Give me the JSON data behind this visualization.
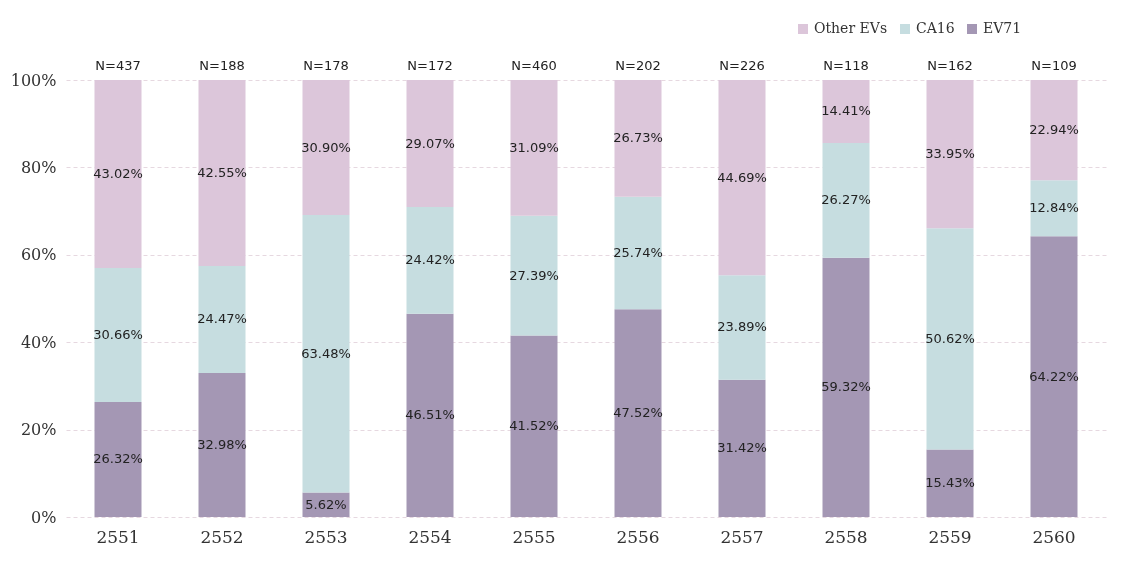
{
  "chart_data": {
    "type": "bar",
    "stacked": true,
    "categories": [
      "2551",
      "2552",
      "2553",
      "2554",
      "2555",
      "2556",
      "2557",
      "2558",
      "2559",
      "2560"
    ],
    "series": [
      {
        "name": "EV71",
        "color": "#a497b4",
        "values": [
          26.32,
          32.98,
          5.62,
          46.51,
          41.52,
          47.52,
          31.42,
          59.32,
          15.43,
          64.22
        ],
        "value_labels": [
          "26.32%",
          "32.98%",
          "5.62%",
          "46.51%",
          "41.52%",
          "47.52%",
          "31.42%",
          "59.32%",
          "15.43%",
          "64.22%"
        ]
      },
      {
        "name": "CA16",
        "color": "#c6dde0",
        "values": [
          30.66,
          24.47,
          63.48,
          24.42,
          27.39,
          25.74,
          23.89,
          26.27,
          50.62,
          12.84
        ],
        "value_labels": [
          "30.66%",
          "24.47%",
          "63.48%",
          "24.42%",
          "27.39%",
          "25.74%",
          "23.89%",
          "26.27%",
          "50.62%",
          "12.84%"
        ]
      },
      {
        "name": "Other EVs",
        "color": "#dcc6da",
        "values": [
          43.02,
          42.55,
          30.9,
          29.07,
          31.09,
          26.73,
          44.69,
          14.41,
          33.95,
          22.94
        ],
        "value_labels": [
          "43.02%",
          "42.55%",
          "30.90%",
          "29.07%",
          "31.09%",
          "26.73%",
          "44.69%",
          "14.41%",
          "33.95%",
          "22.94%"
        ]
      }
    ],
    "ylim": [
      0,
      100
    ],
    "yticks": [
      {
        "value": 0,
        "label": "0%"
      },
      {
        "value": 20,
        "label": "20%"
      },
      {
        "value": 40,
        "label": "40%"
      },
      {
        "value": 60,
        "label": "60%"
      },
      {
        "value": 80,
        "label": "80%"
      },
      {
        "value": 100,
        "label": "100%"
      }
    ],
    "grid": "y",
    "legend": "top right",
    "annotations": [
      {
        "text": "N=437",
        "x": "2551",
        "y": 100
      },
      {
        "text": "N=188",
        "x": "2552",
        "y": 100
      },
      {
        "text": "N=178",
        "x": "2553",
        "y": 100
      },
      {
        "text": "N=172",
        "x": "2554",
        "y": 100
      },
      {
        "text": "N=460",
        "x": "2555",
        "y": 100
      },
      {
        "text": "N=202",
        "x": "2556",
        "y": 100
      },
      {
        "text": "N=226",
        "x": "2557",
        "y": 100
      },
      {
        "text": "N=118",
        "x": "2558",
        "y": 100
      },
      {
        "text": "N=162",
        "x": "2559",
        "y": 100
      },
      {
        "text": "N=109",
        "x": "2560",
        "y": 100
      }
    ]
  }
}
